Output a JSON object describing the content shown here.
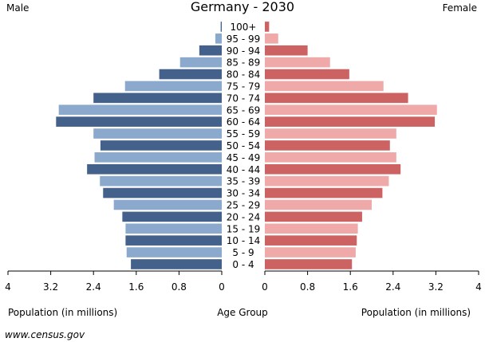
{
  "chart_data": {
    "type": "bar",
    "title": "Germany - 2030",
    "left_label": "Male",
    "right_label": "Female",
    "center_label": "Age Group",
    "xlabel_left": "Population (in millions)",
    "xlabel_right": "Population (in millions)",
    "source": "www.census.gov",
    "xlim": [
      0,
      4
    ],
    "ticks": [
      "4",
      "3.2",
      "2.4",
      "1.6",
      "0.8",
      "0"
    ],
    "ticks_right": [
      "0",
      "0.8",
      "1.6",
      "2.4",
      "3.2",
      "4"
    ],
    "categories": [
      "100+",
      "95 - 99",
      "90 - 94",
      "85 - 89",
      "80 - 84",
      "75 - 79",
      "70 - 74",
      "65 - 69",
      "60 - 64",
      "55 - 59",
      "50 - 54",
      "45 - 49",
      "40 - 44",
      "35 - 39",
      "30 - 34",
      "25 - 29",
      "20 - 24",
      "15 - 19",
      "10 - 14",
      "5 - 9",
      "0 - 4"
    ],
    "series": [
      {
        "name": "Male",
        "values": [
          0.02,
          0.12,
          0.42,
          0.78,
          1.17,
          1.81,
          2.4,
          3.05,
          3.1,
          2.4,
          2.27,
          2.38,
          2.52,
          2.28,
          2.22,
          2.02,
          1.86,
          1.8,
          1.8,
          1.78,
          1.7
        ]
      },
      {
        "name": "Female",
        "values": [
          0.08,
          0.25,
          0.8,
          1.22,
          1.58,
          2.22,
          2.68,
          3.22,
          3.18,
          2.46,
          2.34,
          2.46,
          2.54,
          2.32,
          2.2,
          2.0,
          1.82,
          1.74,
          1.72,
          1.7,
          1.63
        ]
      }
    ],
    "colors": {
      "male_dark": "#43618a",
      "male_light": "#8aa9cd",
      "female_dark": "#cc6262",
      "female_light": "#f0a9a9"
    }
  }
}
